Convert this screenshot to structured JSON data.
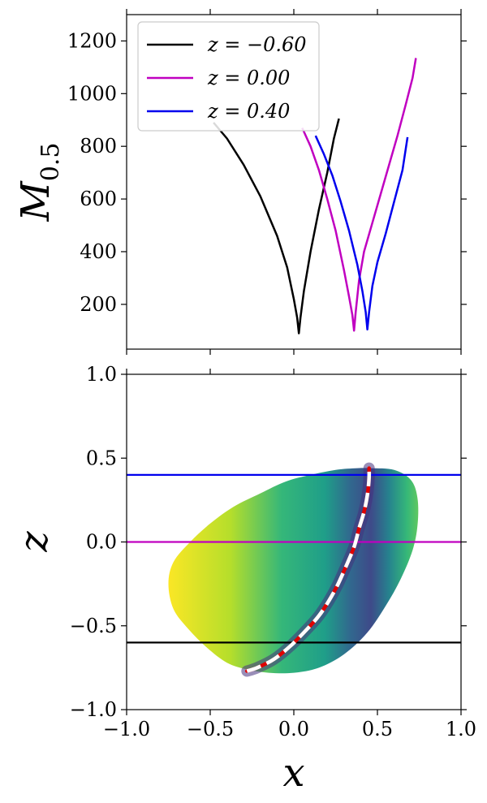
{
  "chart_data": [
    {
      "type": "line",
      "ylabel": "M_0.5",
      "ylabel_base": "M",
      "ylabel_sub": "0.5",
      "xlim": [
        -1.0,
        1.0
      ],
      "ylim": [
        30,
        1300
      ],
      "yticks": [
        200,
        400,
        600,
        800,
        1000,
        1200
      ],
      "ytick_labels": [
        "200",
        "400",
        "600",
        "800",
        "1000",
        "1200"
      ],
      "legend_position": "upper-left",
      "series": [
        {
          "name": "z = −0.60",
          "color": "#000000",
          "x": [
            -0.48,
            -0.4,
            -0.3,
            -0.2,
            -0.1,
            -0.04,
            0.0,
            0.02,
            0.03,
            0.04,
            0.06,
            0.1,
            0.15,
            0.2,
            0.24,
            0.27
          ],
          "y": [
            890,
            830,
            730,
            610,
            460,
            340,
            220,
            150,
            90,
            150,
            250,
            400,
            560,
            700,
            830,
            905
          ]
        },
        {
          "name": "z = 0.00",
          "color": "#c000c0",
          "x": [
            0.05,
            0.1,
            0.15,
            0.2,
            0.25,
            0.3,
            0.33,
            0.35,
            0.36,
            0.37,
            0.39,
            0.42,
            0.47,
            0.52,
            0.57,
            0.62,
            0.67,
            0.71,
            0.73
          ],
          "y": [
            870,
            800,
            710,
            600,
            480,
            330,
            230,
            160,
            100,
            170,
            290,
            400,
            510,
            620,
            730,
            840,
            960,
            1060,
            1135
          ]
        },
        {
          "name": "z = 0.40",
          "color": "#0000ee",
          "x": [
            0.13,
            0.18,
            0.23,
            0.28,
            0.33,
            0.38,
            0.41,
            0.43,
            0.44,
            0.45,
            0.47,
            0.5,
            0.55,
            0.6,
            0.65,
            0.68
          ],
          "y": [
            840,
            770,
            690,
            590,
            480,
            350,
            250,
            170,
            105,
            170,
            270,
            360,
            470,
            590,
            710,
            835
          ]
        }
      ]
    },
    {
      "type": "heatmap",
      "xlabel": "x",
      "ylabel": "z",
      "xlim": [
        -1.0,
        1.0
      ],
      "ylim": [
        -1.0,
        1.0
      ],
      "xticks": [
        -1.0,
        -0.5,
        0.0,
        0.5,
        1.0
      ],
      "xtick_labels": [
        "−1.0",
        "−0.5",
        "0.0",
        "0.5",
        "1.0"
      ],
      "yticks": [
        -1.0,
        -0.5,
        0.0,
        0.5,
        1.0
      ],
      "ytick_labels": [
        "−1.0",
        "−0.5",
        "0.0",
        "0.5",
        "1.0"
      ],
      "colormap": "viridis",
      "region_outline": {
        "x": [
          -0.75,
          -0.72,
          -0.62,
          -0.5,
          -0.36,
          -0.2,
          -0.05,
          0.1,
          0.25,
          0.38,
          0.46,
          0.6,
          0.7,
          0.74,
          0.74,
          0.71,
          0.64,
          0.55,
          0.44,
          0.3,
          0.15,
          0.0,
          -0.15,
          -0.28,
          -0.4,
          -0.52,
          -0.63,
          -0.72,
          -0.75
        ],
        "y": [
          -0.25,
          -0.12,
          0.0,
          0.11,
          0.21,
          0.29,
          0.36,
          0.4,
          0.43,
          0.44,
          0.44,
          0.43,
          0.37,
          0.26,
          0.1,
          -0.05,
          -0.22,
          -0.38,
          -0.54,
          -0.67,
          -0.75,
          -0.78,
          -0.78,
          -0.76,
          -0.72,
          -0.63,
          -0.52,
          -0.4,
          -0.25
        ]
      },
      "valley_curve": {
        "x": [
          -0.28,
          -0.22,
          -0.12,
          -0.02,
          0.07,
          0.15,
          0.21,
          0.26,
          0.31,
          0.36,
          0.39,
          0.42,
          0.44,
          0.45,
          0.45
        ],
        "y": [
          -0.77,
          -0.75,
          -0.7,
          -0.62,
          -0.53,
          -0.44,
          -0.35,
          -0.26,
          -0.15,
          -0.03,
          0.08,
          0.18,
          0.28,
          0.38,
          0.44
        ]
      },
      "hlines": [
        {
          "z": 0.4,
          "color": "#0000ee"
        },
        {
          "z": 0.0,
          "color": "#c000c0"
        },
        {
          "z": -0.6,
          "color": "#000000"
        }
      ]
    }
  ]
}
